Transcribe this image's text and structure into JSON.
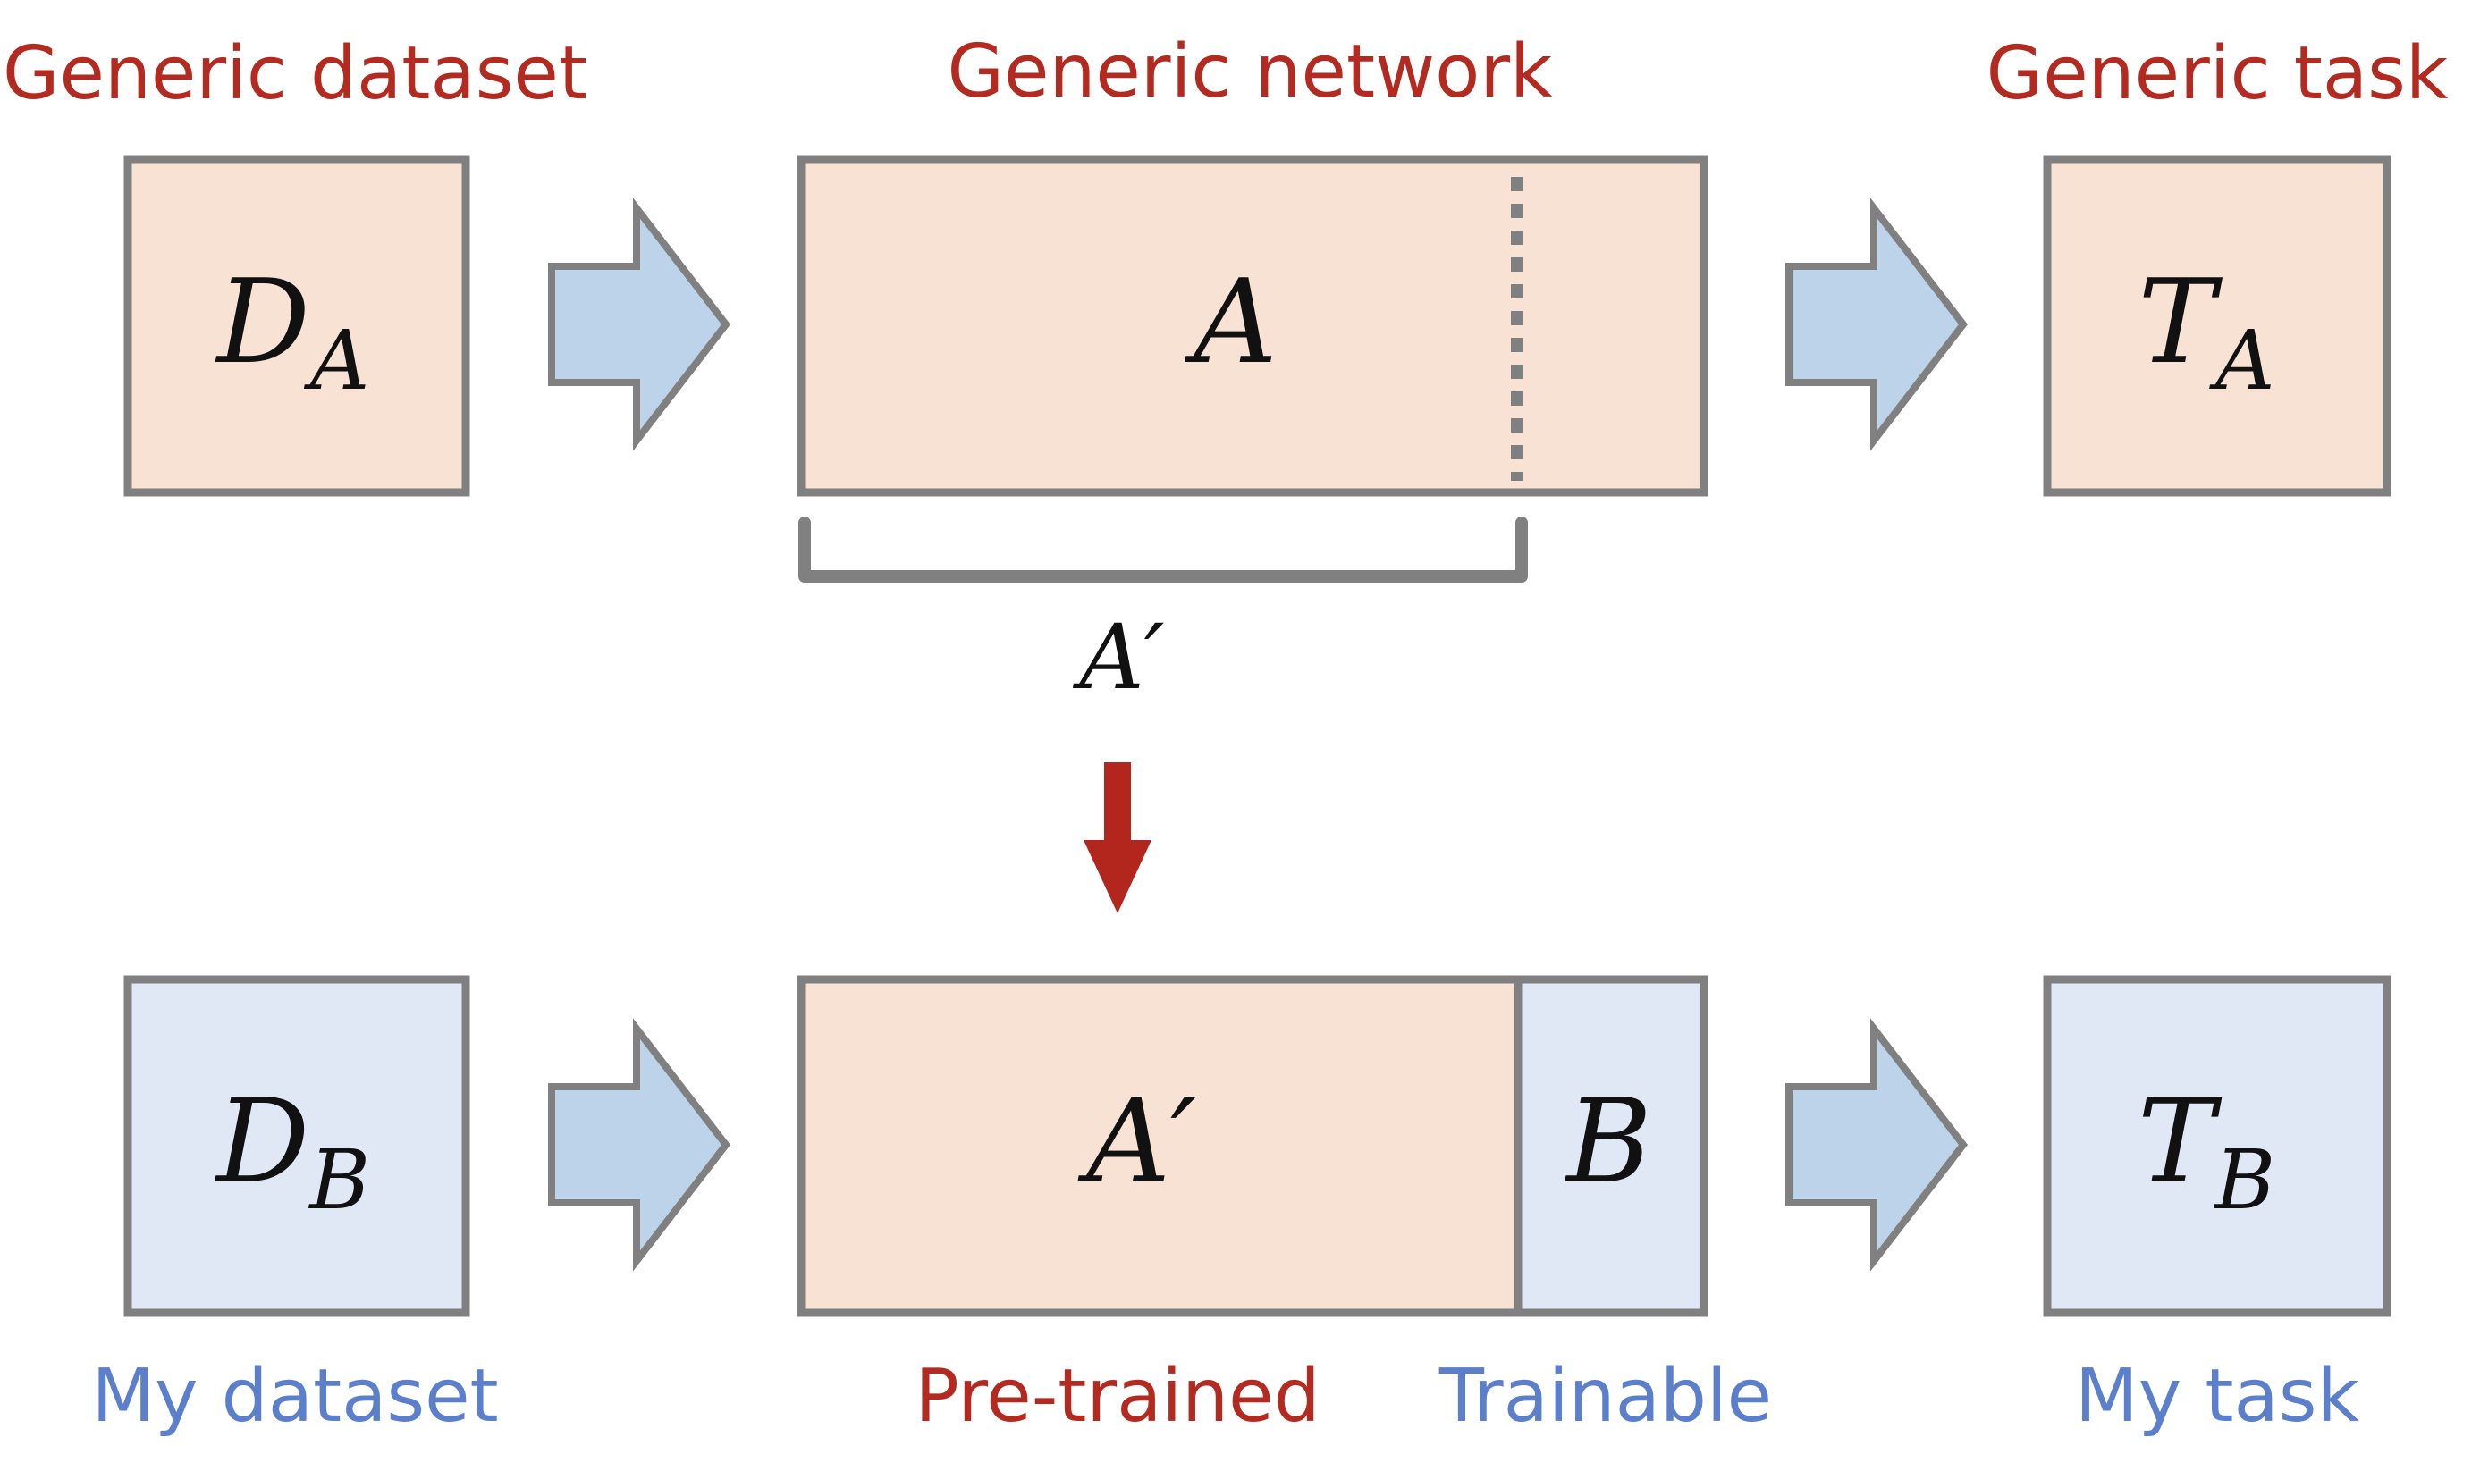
{
  "captions": {
    "generic_dataset": "Generic dataset",
    "generic_network": "Generic network",
    "generic_task": "Generic task",
    "my_dataset": "My dataset",
    "pre_trained": "Pre-trained",
    "trainable": "Trainable",
    "my_task": "My task"
  },
  "symbols": {
    "d": "D",
    "d_sub_top": "A",
    "d_sub_bottom": "B",
    "network_top": "A",
    "bracket_label": "A′",
    "network_bottom_left": "A′",
    "network_bottom_right": "B",
    "t": "T",
    "t_sub_top": "A",
    "t_sub_bottom": "B"
  },
  "colors": {
    "generic_caption": "#b22a20",
    "my_caption": "#5b7fcb",
    "peach_fill": "#f7e2d4",
    "blue_fill": "#dfe8f4",
    "box_border": "#808080",
    "arrow_fill": "#bdd3ea",
    "transfer_arrow": "#b3261e",
    "text": "#111111"
  }
}
